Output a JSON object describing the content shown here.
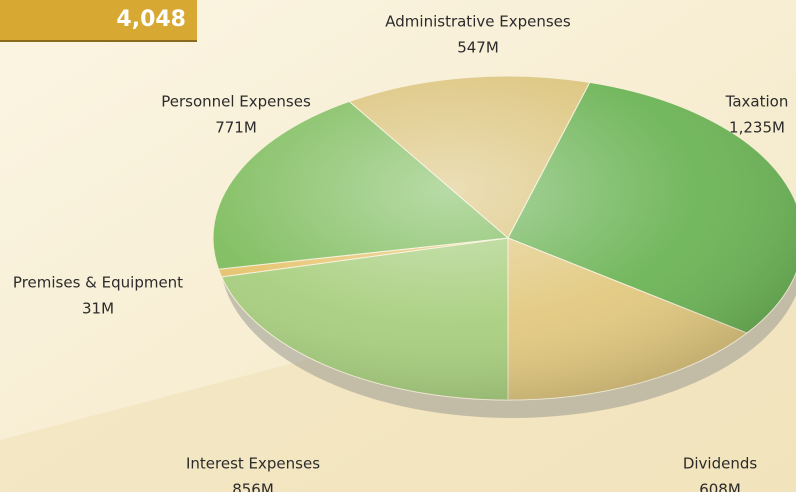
{
  "chart_data": {
    "type": "pie",
    "total": {
      "value": 4048,
      "label": "4,048"
    },
    "categories": [
      "Administrative Expenses",
      "Taxation",
      "Dividends",
      "Interest Expenses",
      "Premises & Equipment",
      "Personnel Expenses"
    ],
    "values": [
      547,
      1235,
      608,
      856,
      31,
      771
    ],
    "value_labels": [
      "547M",
      "1,235M",
      "608M",
      "856M",
      "31M",
      "771M"
    ],
    "colors": [
      "#dcc47c",
      "#6cb456",
      "#e2c980",
      "#a8cf7f",
      "#e6c46e",
      "#7fbd5e"
    ]
  }
}
